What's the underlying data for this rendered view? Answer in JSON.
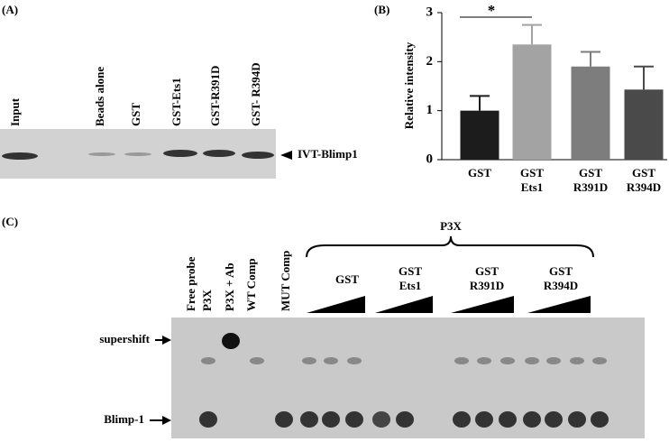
{
  "panel_a": {
    "label": "(A)",
    "lanes": [
      "Input",
      "Beads alone",
      "GST",
      "GST-Ets1",
      "GST-R391D",
      "GST- R394D"
    ],
    "band_label": "IVT-Blimp1"
  },
  "chart_data": {
    "type": "bar",
    "panel_label": "(B)",
    "y_label": "Relative intensity",
    "categories": [
      "GST",
      "GST Ets1",
      "GST R391D",
      "GST R394D"
    ],
    "values": [
      1.0,
      2.35,
      1.9,
      1.43
    ],
    "errors": [
      0.3,
      0.4,
      0.3,
      0.47
    ],
    "colors": [
      "#1c1c1c",
      "#a3a3a3",
      "#7d7d7d",
      "#4a4a4a"
    ],
    "ylim": [
      0,
      3
    ],
    "yticks": [
      0,
      1,
      2,
      3
    ],
    "significance": "*"
  },
  "panel_c": {
    "label": "(C)",
    "lanes": [
      "Free probe",
      "P3X",
      "P3X + Ab",
      "WT Comp",
      "MUT Comp"
    ],
    "bracket_label": "P3X",
    "groups": [
      "GST",
      "GST Ets1",
      "GST R391D",
      "GST R394D"
    ],
    "band_labels": [
      "supershift",
      "Blimp-1"
    ]
  }
}
